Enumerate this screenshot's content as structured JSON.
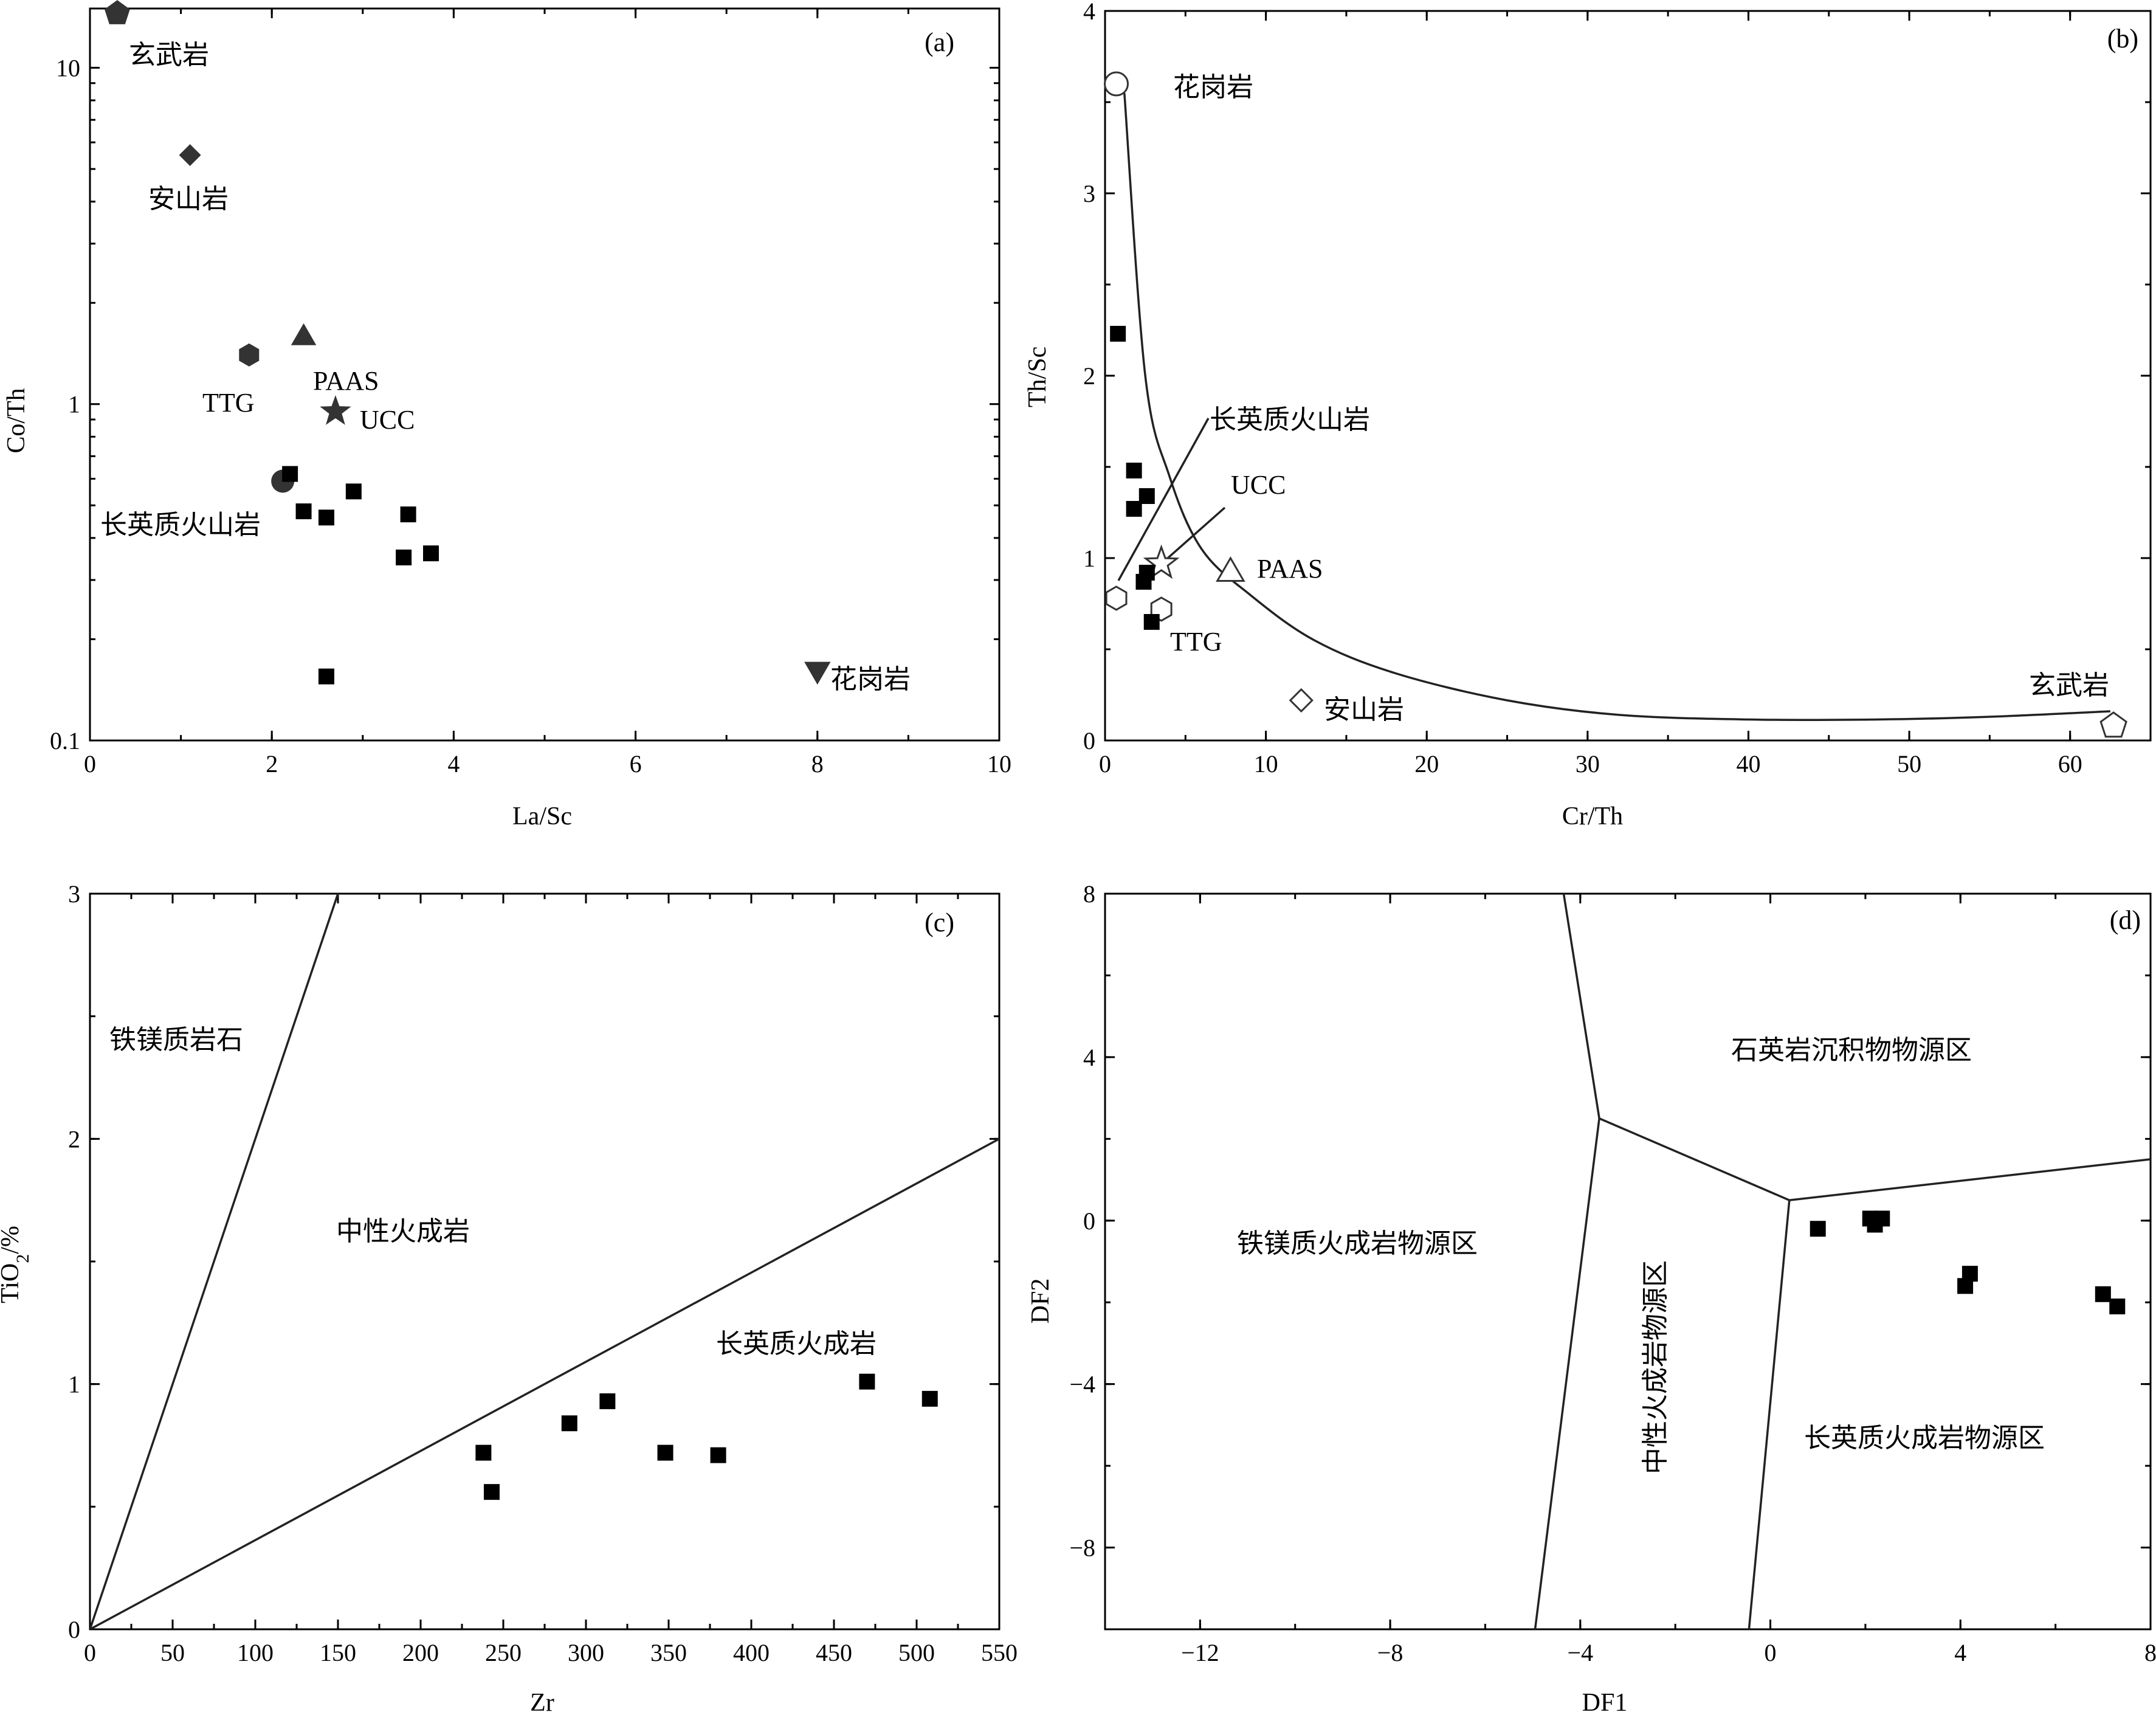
{
  "chart_data": [
    {
      "panel": "(a)",
      "type": "scatter",
      "xlabel": "La/Sc",
      "ylabel": "Co/Th",
      "xlim": [
        0,
        10
      ],
      "ylim": [
        0.1,
        15
      ],
      "yscale": "log",
      "xticks": [
        0,
        2,
        4,
        6,
        8,
        10
      ],
      "yticks": [
        0.1,
        1,
        10
      ],
      "samples": [
        {
          "x": 2.2,
          "y": 0.62
        },
        {
          "x": 2.35,
          "y": 0.48
        },
        {
          "x": 2.6,
          "y": 0.46
        },
        {
          "x": 2.9,
          "y": 0.55
        },
        {
          "x": 3.5,
          "y": 0.47
        },
        {
          "x": 3.45,
          "y": 0.35
        },
        {
          "x": 3.75,
          "y": 0.36
        },
        {
          "x": 2.6,
          "y": 0.155
        }
      ],
      "references": [
        {
          "label": "玄武岩",
          "marker": "pentagon",
          "x": 0.3,
          "y": 14.5
        },
        {
          "label": "安山岩",
          "marker": "diamond",
          "x": 1.1,
          "y": 5.5
        },
        {
          "label": "TTG",
          "marker": "hexagon",
          "x": 1.75,
          "y": 1.4
        },
        {
          "label": "PAAS",
          "marker": "triangle-up",
          "x": 2.35,
          "y": 1.6
        },
        {
          "label": "UCC",
          "marker": "star",
          "x": 2.7,
          "y": 0.95
        },
        {
          "label": "长英质火山岩",
          "marker": "circle",
          "x": 2.12,
          "y": 0.59
        },
        {
          "label": "花岗岩",
          "marker": "triangle-down",
          "x": 8.0,
          "y": 0.16
        }
      ]
    },
    {
      "panel": "(b)",
      "type": "scatter",
      "xlabel": "Cr/Th",
      "ylabel": "Th/Sc",
      "xlim": [
        0,
        65
      ],
      "ylim": [
        0,
        4
      ],
      "xticks": [
        0,
        10,
        20,
        30,
        40,
        50,
        60
      ],
      "yticks": [
        0,
        1,
        2,
        3,
        4
      ],
      "samples": [
        {
          "x": 0.8,
          "y": 2.23
        },
        {
          "x": 1.8,
          "y": 1.48
        },
        {
          "x": 2.6,
          "y": 1.34
        },
        {
          "x": 1.8,
          "y": 1.27
        },
        {
          "x": 2.6,
          "y": 0.92
        },
        {
          "x": 2.4,
          "y": 0.87
        },
        {
          "x": 2.9,
          "y": 0.65
        }
      ],
      "references": [
        {
          "label": "花岗岩",
          "marker": "circle-open",
          "x": 0.7,
          "y": 3.6
        },
        {
          "label": "长英质火山岩",
          "marker": "hexagon-open",
          "x": 0.7,
          "y": 0.78
        },
        {
          "label": "UCC",
          "marker": "star-open",
          "x": 3.5,
          "y": 0.97
        },
        {
          "label": "PAAS",
          "marker": "triangle-open",
          "x": 7.8,
          "y": 0.93
        },
        {
          "label": "TTG",
          "marker": "hexagon-open",
          "x": 3.5,
          "y": 0.72
        },
        {
          "label": "安山岩",
          "marker": "diamond-open",
          "x": 12.2,
          "y": 0.22
        },
        {
          "label": "玄武岩",
          "marker": "pentagon-open",
          "x": 62.7,
          "y": 0.08
        }
      ],
      "mixing_curve": [
        {
          "x": 1.2,
          "y": 3.55
        },
        {
          "x": 2.5,
          "y": 2.0
        },
        {
          "x": 4.0,
          "y": 1.45
        },
        {
          "x": 6.0,
          "y": 1.05
        },
        {
          "x": 9.0,
          "y": 0.8
        },
        {
          "x": 13.0,
          "y": 0.55
        },
        {
          "x": 18.0,
          "y": 0.37
        },
        {
          "x": 25.0,
          "y": 0.22
        },
        {
          "x": 32.0,
          "y": 0.14
        },
        {
          "x": 40.0,
          "y": 0.115
        },
        {
          "x": 48.0,
          "y": 0.115
        },
        {
          "x": 55.0,
          "y": 0.13
        },
        {
          "x": 62.5,
          "y": 0.16
        }
      ]
    },
    {
      "panel": "(c)",
      "type": "scatter",
      "xlabel": "Zr",
      "ylabel": "TiO",
      "ylabel_sub": "2",
      "ylabel_suffix": "/%",
      "xlim": [
        0,
        550
      ],
      "ylim": [
        0,
        3
      ],
      "xticks": [
        0,
        50,
        100,
        150,
        200,
        250,
        300,
        350,
        400,
        450,
        500,
        550
      ],
      "yticks": [
        0,
        1,
        2,
        3
      ],
      "samples": [
        {
          "x": 238,
          "y": 0.72
        },
        {
          "x": 243,
          "y": 0.56
        },
        {
          "x": 290,
          "y": 0.84
        },
        {
          "x": 313,
          "y": 0.93
        },
        {
          "x": 348,
          "y": 0.72
        },
        {
          "x": 380,
          "y": 0.71
        },
        {
          "x": 470,
          "y": 1.01
        },
        {
          "x": 508,
          "y": 0.94
        }
      ],
      "boundaries": [
        [
          {
            "x": 0,
            "y": 0
          },
          {
            "x": 150,
            "y": 3
          }
        ],
        [
          {
            "x": 0,
            "y": 0
          },
          {
            "x": 550,
            "y": 2
          }
        ]
      ],
      "regions": [
        "铁镁质岩石",
        "中性火成岩",
        "长英质火成岩"
      ]
    },
    {
      "panel": "(d)",
      "type": "scatter",
      "xlabel": "DF1",
      "ylabel": "DF2",
      "xlim": [
        -14,
        8
      ],
      "ylim": [
        -10,
        8
      ],
      "xticks": [
        -12,
        -8,
        -4,
        0,
        4,
        8
      ],
      "xtick_labels": [
        "−12",
        "−8",
        "−4",
        "0",
        "4",
        "8"
      ],
      "yticks": [
        -8,
        -4,
        0,
        4,
        8
      ],
      "ytick_labels": [
        "−8",
        "−4",
        "0",
        "4",
        "8"
      ],
      "samples": [
        {
          "x": 1.0,
          "y": -0.2
        },
        {
          "x": 2.1,
          "y": 0.05
        },
        {
          "x": 2.2,
          "y": -0.1
        },
        {
          "x": 2.35,
          "y": 0.05
        },
        {
          "x": 4.1,
          "y": -1.6
        },
        {
          "x": 4.2,
          "y": -1.3
        },
        {
          "x": 7.0,
          "y": -1.8
        },
        {
          "x": 7.3,
          "y": -2.1
        }
      ],
      "boundaries": [
        [
          {
            "x": -4.35,
            "y": 8
          },
          {
            "x": -3.6,
            "y": 2.5
          },
          {
            "x": 0.4,
            "y": 0.5
          },
          {
            "x": 8.0,
            "y": 1.5
          }
        ],
        [
          {
            "x": -3.6,
            "y": 2.5
          },
          {
            "x": -4.95,
            "y": -10
          }
        ],
        [
          {
            "x": 0.4,
            "y": 0.5
          },
          {
            "x": -0.45,
            "y": -10
          }
        ]
      ],
      "regions": [
        "石英岩沉积物物源区",
        "铁镁质火成岩物源区",
        "中性火成岩物源区",
        "长英质火成岩物源区"
      ]
    }
  ]
}
